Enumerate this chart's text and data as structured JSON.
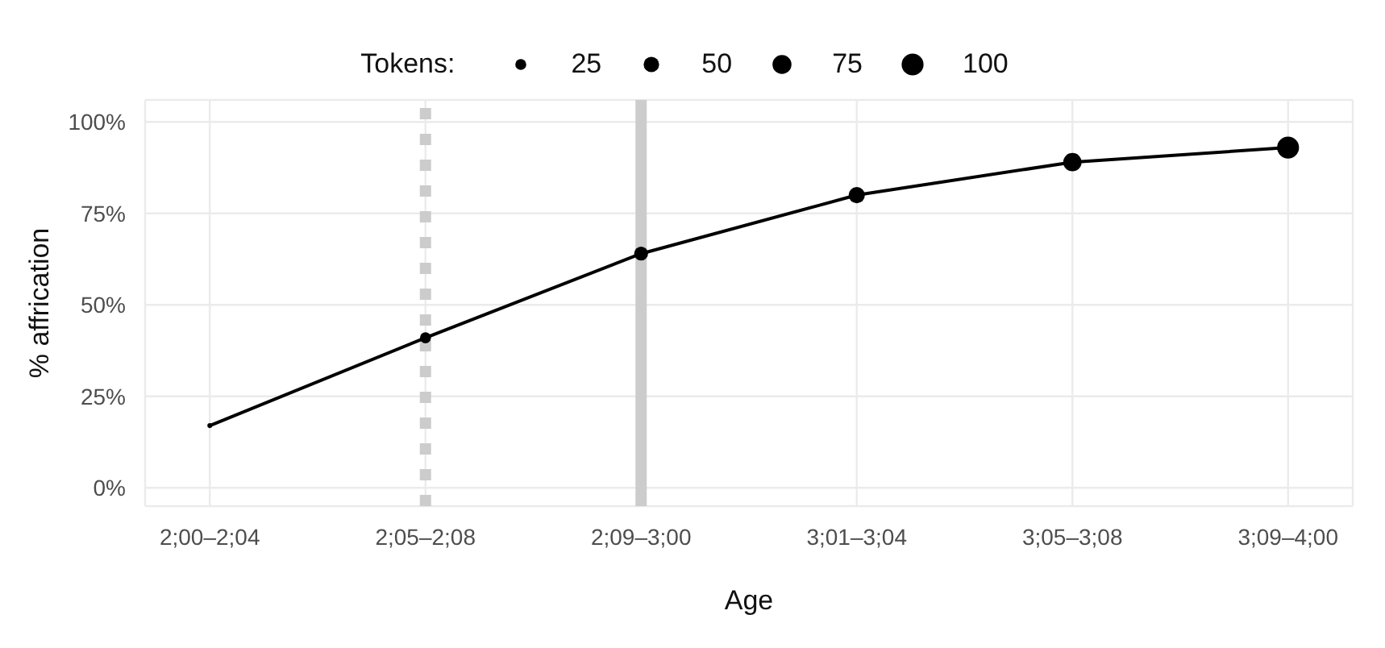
{
  "chart_data": {
    "type": "bubble",
    "xlabel": "Age",
    "ylabel": "% affrication",
    "legend_title": "Tokens:",
    "grid": true,
    "marker": "circle",
    "categories": [
      "2;00–2;04",
      "2;05–2;08",
      "2;09–3;00",
      "3;01–3;04",
      "3;05–3;08",
      "3;09–4;00"
    ],
    "series": [
      {
        "type": "line",
        "color": "#000000",
        "marker": "none",
        "line_style": "solid",
        "values": [
          17,
          41,
          64,
          80,
          89,
          93
        ]
      },
      {
        "color": "#000000",
        "values": [
          17,
          41,
          64,
          80,
          89,
          93
        ],
        "sizes": [
          5,
          25,
          40,
          55,
          70,
          100
        ]
      }
    ],
    "size_legend": [
      25,
      50,
      75,
      100
    ],
    "ylim": [
      -5,
      106
    ],
    "yticks": [
      {
        "value": 0,
        "label": "0%"
      },
      {
        "value": 25,
        "label": "25%"
      },
      {
        "value": 50,
        "label": "50%"
      },
      {
        "value": 75,
        "label": "75%"
      },
      {
        "value": 100,
        "label": "100%"
      }
    ],
    "ref_lines": [
      {
        "axis": "x",
        "value": "2;05–2;08",
        "color": "#cccccc",
        "line_style": "dotted"
      },
      {
        "axis": "x",
        "value": "2;09–3;00",
        "color": "#cccccc",
        "line_style": "solid"
      }
    ]
  }
}
